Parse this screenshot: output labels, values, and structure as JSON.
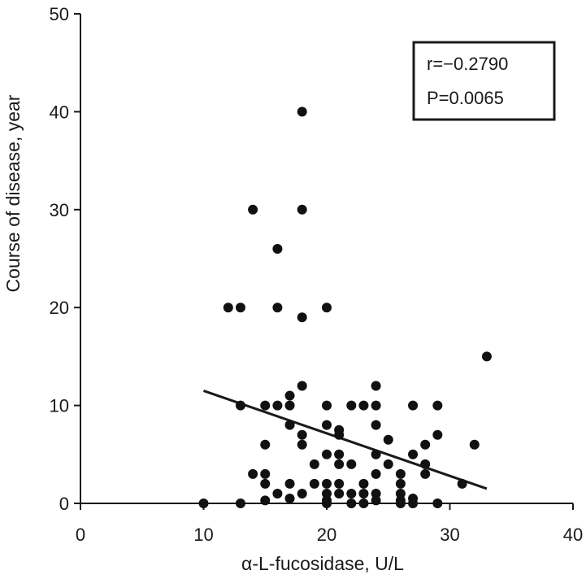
{
  "chart_data": {
    "type": "scatter",
    "xlabel": "α-L-fucosidase, U/L",
    "ylabel": "Course of disease, year",
    "xlim": [
      0,
      40
    ],
    "ylim": [
      0,
      50
    ],
    "x_ticks": [
      "0",
      "10",
      "20",
      "30",
      "40"
    ],
    "y_ticks": [
      "0",
      "10",
      "20",
      "30",
      "40",
      "50"
    ],
    "grid": false,
    "annotation": {
      "r_text": "r=−0.2790",
      "p_text": "P=0.0065",
      "placement": "top-right"
    },
    "trendline": {
      "x": [
        10,
        33
      ],
      "y": [
        11.5,
        1.5
      ]
    },
    "points": [
      {
        "x": 10,
        "y": 0
      },
      {
        "x": 12,
        "y": 20
      },
      {
        "x": 13,
        "y": 20
      },
      {
        "x": 13,
        "y": 10
      },
      {
        "x": 13,
        "y": 0
      },
      {
        "x": 14,
        "y": 30
      },
      {
        "x": 14,
        "y": 3
      },
      {
        "x": 15,
        "y": 10
      },
      {
        "x": 15,
        "y": 6
      },
      {
        "x": 15,
        "y": 3
      },
      {
        "x": 15,
        "y": 2
      },
      {
        "x": 15,
        "y": 0.3
      },
      {
        "x": 16,
        "y": 26
      },
      {
        "x": 16,
        "y": 20
      },
      {
        "x": 16,
        "y": 10
      },
      {
        "x": 16,
        "y": 1
      },
      {
        "x": 17,
        "y": 11
      },
      {
        "x": 17,
        "y": 10
      },
      {
        "x": 17,
        "y": 8
      },
      {
        "x": 17,
        "y": 2
      },
      {
        "x": 17,
        "y": 0.5
      },
      {
        "x": 18,
        "y": 40
      },
      {
        "x": 18,
        "y": 30
      },
      {
        "x": 18,
        "y": 19
      },
      {
        "x": 18,
        "y": 12
      },
      {
        "x": 18,
        "y": 7
      },
      {
        "x": 18,
        "y": 6
      },
      {
        "x": 18,
        "y": 1
      },
      {
        "x": 19,
        "y": 4
      },
      {
        "x": 19,
        "y": 2
      },
      {
        "x": 20,
        "y": 20
      },
      {
        "x": 20,
        "y": 10
      },
      {
        "x": 20,
        "y": 8
      },
      {
        "x": 20,
        "y": 5
      },
      {
        "x": 20,
        "y": 2
      },
      {
        "x": 20,
        "y": 1
      },
      {
        "x": 20,
        "y": 0.3
      },
      {
        "x": 20,
        "y": 0
      },
      {
        "x": 21,
        "y": 7.5
      },
      {
        "x": 21,
        "y": 7
      },
      {
        "x": 21,
        "y": 5
      },
      {
        "x": 21,
        "y": 4
      },
      {
        "x": 21,
        "y": 2
      },
      {
        "x": 21,
        "y": 1
      },
      {
        "x": 22,
        "y": 10
      },
      {
        "x": 22,
        "y": 4
      },
      {
        "x": 22,
        "y": 1
      },
      {
        "x": 22,
        "y": 0
      },
      {
        "x": 23,
        "y": 10
      },
      {
        "x": 23,
        "y": 2
      },
      {
        "x": 23,
        "y": 1
      },
      {
        "x": 23,
        "y": 0
      },
      {
        "x": 24,
        "y": 12
      },
      {
        "x": 24,
        "y": 10
      },
      {
        "x": 24,
        "y": 8
      },
      {
        "x": 24,
        "y": 5
      },
      {
        "x": 24,
        "y": 3
      },
      {
        "x": 24,
        "y": 1
      },
      {
        "x": 24,
        "y": 0.3
      },
      {
        "x": 25,
        "y": 6.5
      },
      {
        "x": 25,
        "y": 4
      },
      {
        "x": 26,
        "y": 3
      },
      {
        "x": 26,
        "y": 2
      },
      {
        "x": 26,
        "y": 1
      },
      {
        "x": 26,
        "y": 0.3
      },
      {
        "x": 26,
        "y": 0
      },
      {
        "x": 27,
        "y": 10
      },
      {
        "x": 27,
        "y": 5
      },
      {
        "x": 27,
        "y": 0.5
      },
      {
        "x": 27,
        "y": 0
      },
      {
        "x": 28,
        "y": 6
      },
      {
        "x": 28,
        "y": 4
      },
      {
        "x": 28,
        "y": 3
      },
      {
        "x": 29,
        "y": 10
      },
      {
        "x": 29,
        "y": 7
      },
      {
        "x": 29,
        "y": 0
      },
      {
        "x": 31,
        "y": 2
      },
      {
        "x": 32,
        "y": 6
      },
      {
        "x": 33,
        "y": 15
      }
    ]
  }
}
